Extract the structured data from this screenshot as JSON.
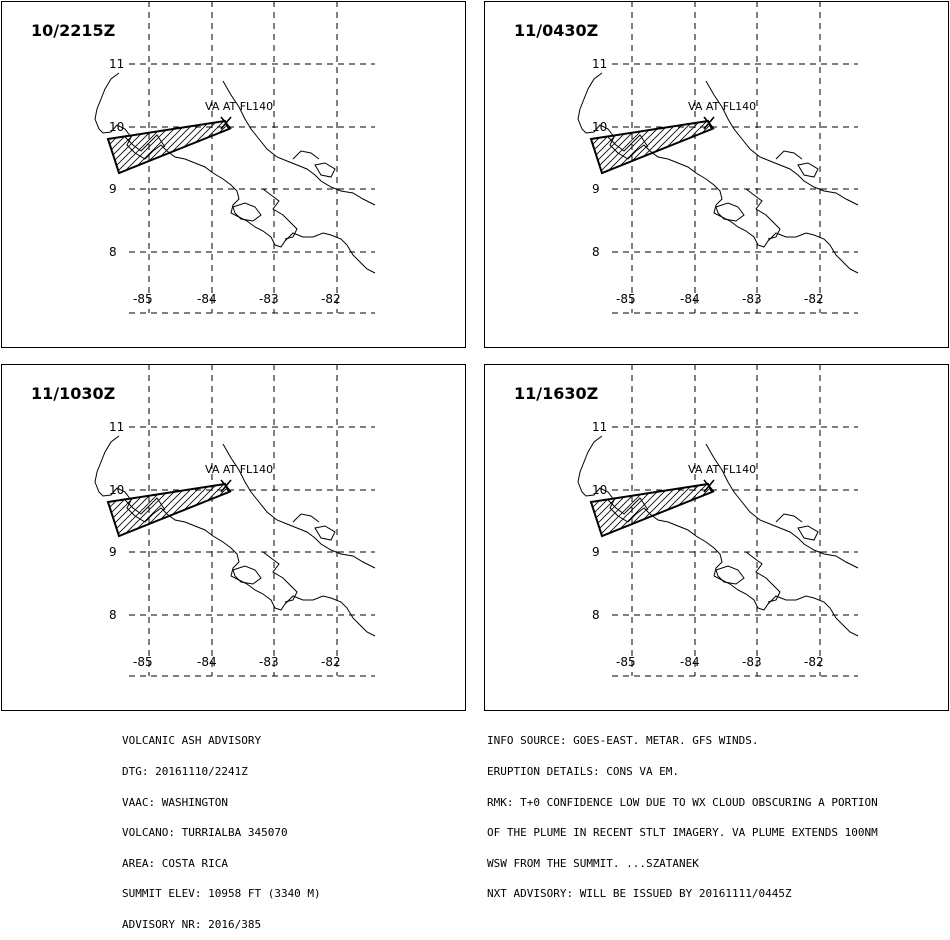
{
  "panels": [
    {
      "time": "10/2215Z",
      "plume_label": "VA AT FL140"
    },
    {
      "time": "11/0430Z",
      "plume_label": "VA AT FL140"
    },
    {
      "time": "11/1030Z",
      "plume_label": "VA AT FL140"
    },
    {
      "time": "11/1630Z",
      "plume_label": "VA AT FL140"
    }
  ],
  "lat_labels": [
    "11",
    "10",
    "9",
    "8"
  ],
  "lon_labels": [
    "-85",
    "-84",
    "-83",
    "-82"
  ],
  "footer_left": [
    "VOLCANIC ASH ADVISORY",
    "DTG: 20161110/2241Z",
    "VAAC: WASHINGTON",
    "VOLCANO: TURRIALBA 345070",
    "AREA: COSTA RICA",
    "SUMMIT ELEV: 10958 FT (3340 M)",
    "ADVISORY NR: 2016/385"
  ],
  "footer_right": [
    "INFO SOURCE: GOES-EAST. METAR. GFS WINDS.",
    "ERUPTION DETAILS: CONS VA EM.",
    "RMK: T+0 CONFIDENCE LOW DUE TO WX CLOUD OBSCURING A PORTION",
    "OF THE PLUME IN RECENT STLT IMAGERY. VA PLUME EXTENDS 100NM",
    "WSW FROM THE SUMMIT. ...SZATANEK",
    "NXT ADVISORY: WILL BE ISSUED BY 20161111/0445Z"
  ]
}
